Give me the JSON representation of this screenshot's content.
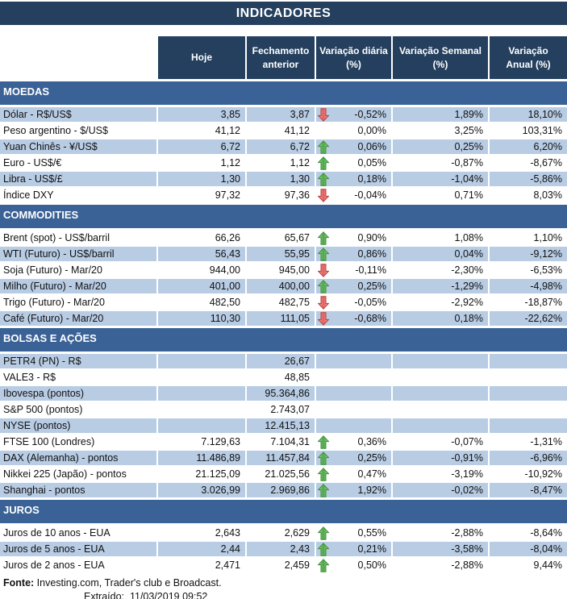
{
  "title": "INDICADORES",
  "columns": {
    "today": "Hoje",
    "previous_close": "Fechamento\nanterior",
    "daily_change": "Variação diária\n(%)",
    "weekly_change": "Variação Semanal\n(%)",
    "annual_change": "Variação\nAnual (%)"
  },
  "sections": [
    {
      "name": "MOEDAS",
      "rows": [
        {
          "label": "Dólar - R$/US$",
          "today": "3,85",
          "prev": "3,87",
          "arrow": "down",
          "daily": "-0,52%",
          "weekly": "1,89%",
          "annual": "18,10%"
        },
        {
          "label": "Peso argentino - $/US$",
          "today": "41,12",
          "prev": "41,12",
          "arrow": "",
          "daily": "0,00%",
          "weekly": "3,25%",
          "annual": "103,31%"
        },
        {
          "label": "Yuan Chinês - ¥/US$",
          "today": "6,72",
          "prev": "6,72",
          "arrow": "up",
          "daily": "0,06%",
          "weekly": "0,25%",
          "annual": "6,20%"
        },
        {
          "label": "Euro - US$/€",
          "today": "1,12",
          "prev": "1,12",
          "arrow": "up",
          "daily": "0,05%",
          "weekly": "-0,87%",
          "annual": "-8,67%"
        },
        {
          "label": "Libra - US$/£",
          "today": "1,30",
          "prev": "1,30",
          "arrow": "up",
          "daily": "0,18%",
          "weekly": "-1,04%",
          "annual": "-5,86%"
        },
        {
          "label": "Índice DXY",
          "today": "97,32",
          "prev": "97,36",
          "arrow": "down",
          "daily": "-0,04%",
          "weekly": "0,71%",
          "annual": "8,03%"
        }
      ]
    },
    {
      "name": "COMMODITIES",
      "rows": [
        {
          "label": "Brent (spot) - US$/barril",
          "today": "66,26",
          "prev": "65,67",
          "arrow": "up",
          "daily": "0,90%",
          "weekly": "1,08%",
          "annual": "1,10%"
        },
        {
          "label": "WTI (Futuro) - US$/barril",
          "today": "56,43",
          "prev": "55,95",
          "arrow": "up",
          "daily": "0,86%",
          "weekly": "0,04%",
          "annual": "-9,12%"
        },
        {
          "label": "Soja (Futuro) - Mar/20",
          "today": "944,00",
          "prev": "945,00",
          "arrow": "down",
          "daily": "-0,11%",
          "weekly": "-2,30%",
          "annual": "-6,53%"
        },
        {
          "label": "Milho (Futuro) - Mar/20",
          "today": "401,00",
          "prev": "400,00",
          "arrow": "up",
          "daily": "0,25%",
          "weekly": "-1,29%",
          "annual": "-4,98%"
        },
        {
          "label": "Trigo (Futuro) - Mar/20",
          "today": "482,50",
          "prev": "482,75",
          "arrow": "down",
          "daily": "-0,05%",
          "weekly": "-2,92%",
          "annual": "-18,87%"
        },
        {
          "label": "Café (Futuro) - Mar/20",
          "today": "110,30",
          "prev": "111,05",
          "arrow": "down",
          "daily": "-0,68%",
          "weekly": "0,18%",
          "annual": "-22,62%"
        }
      ]
    },
    {
      "name": "BOLSAS E AÇÕES",
      "rows": [
        {
          "label": "PETR4 (PN) - R$",
          "today": "",
          "prev": "26,67",
          "arrow": "",
          "daily": "",
          "weekly": "",
          "annual": ""
        },
        {
          "label": "VALE3 - R$",
          "today": "",
          "prev": "48,85",
          "arrow": "",
          "daily": "",
          "weekly": "",
          "annual": ""
        },
        {
          "label": "Ibovespa (pontos)",
          "today": "",
          "prev": "95.364,86",
          "arrow": "",
          "daily": "",
          "weekly": "",
          "annual": ""
        },
        {
          "label": "S&P 500 (pontos)",
          "today": "",
          "prev": "2.743,07",
          "arrow": "",
          "daily": "",
          "weekly": "",
          "annual": ""
        },
        {
          "label": "NYSE (pontos)",
          "today": "",
          "prev": "12.415,13",
          "arrow": "",
          "daily": "",
          "weekly": "",
          "annual": ""
        },
        {
          "label": "FTSE 100 (Londres)",
          "today": "7.129,63",
          "prev": "7.104,31",
          "arrow": "up",
          "daily": "0,36%",
          "weekly": "-0,07%",
          "annual": "-1,31%"
        },
        {
          "label": "DAX (Alemanha) - pontos",
          "today": "11.486,89",
          "prev": "11.457,84",
          "arrow": "up",
          "daily": "0,25%",
          "weekly": "-0,91%",
          "annual": "-6,96%"
        },
        {
          "label": "Nikkei 225 (Japão) - pontos",
          "today": "21.125,09",
          "prev": "21.025,56",
          "arrow": "up",
          "daily": "0,47%",
          "weekly": "-3,19%",
          "annual": "-10,92%"
        },
        {
          "label": "Shanghai - pontos",
          "today": "3.026,99",
          "prev": "2.969,86",
          "arrow": "up",
          "daily": "1,92%",
          "weekly": "-0,02%",
          "annual": "-8,47%"
        }
      ]
    },
    {
      "name": "JUROS",
      "rows": [
        {
          "label": "Juros de 10 anos - EUA",
          "today": "2,643",
          "prev": "2,629",
          "arrow": "up",
          "daily": "0,55%",
          "weekly": "-2,88%",
          "annual": "-8,64%"
        },
        {
          "label": "Juros de 5 anos - EUA",
          "today": "2,44",
          "prev": "2,43",
          "arrow": "up",
          "daily": "0,21%",
          "weekly": "-3,58%",
          "annual": "-8,04%"
        },
        {
          "label": "Juros de 2 anos - EUA",
          "today": "2,471",
          "prev": "2,459",
          "arrow": "up",
          "daily": "0,50%",
          "weekly": "-2,88%",
          "annual": "9,44%"
        }
      ]
    }
  ],
  "footer": {
    "source_label": "Fonte:",
    "source_text": " Investing.com, Trader's club e Broadcast.",
    "extracted_label": "Extraído:",
    "extracted_datetime": "11/03/2019 09:52"
  },
  "colors": {
    "header_navy": "#24405E",
    "section_steel_blue": "#3A6296",
    "row_stripe_blue": "#B8CCE4",
    "up_arrow_green": "#4DA647",
    "up_arrow_green_light": "#A8DC9B",
    "up_arrow_border": "#3F8F3B",
    "down_arrow_red": "#E2615E",
    "down_arrow_red_light": "#F5A3A1",
    "down_arrow_border": "#B8413E"
  }
}
